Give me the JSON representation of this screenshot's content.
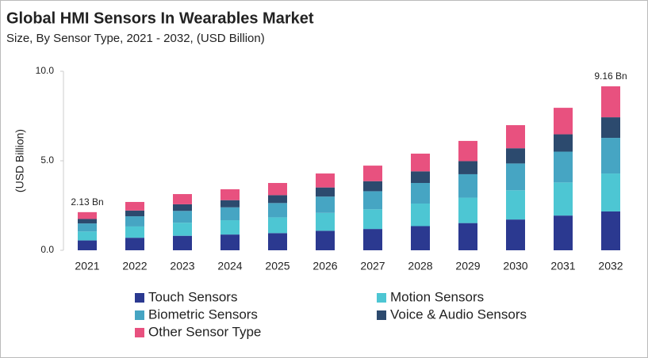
{
  "chart_data": {
    "type": "stacked-bar",
    "title": "Global HMI Sensors In Wearables Market",
    "subtitle": "Size, By Sensor Type, 2021 - 2032, (USD Billion)",
    "y_label": "(USD Billion)",
    "categories": [
      "2021",
      "2022",
      "2023",
      "2024",
      "2025",
      "2026",
      "2027",
      "2028",
      "2029",
      "2030",
      "2031",
      "2032"
    ],
    "series": [
      {
        "name": "Touch Sensors",
        "color": "#2b3990",
        "values": [
          0.55,
          0.7,
          0.81,
          0.88,
          0.96,
          1.09,
          1.19,
          1.35,
          1.52,
          1.72,
          1.94,
          2.17
        ]
      },
      {
        "name": "Motion Sensors",
        "color": "#4dc6d3",
        "values": [
          0.5,
          0.63,
          0.73,
          0.8,
          0.88,
          1.0,
          1.1,
          1.26,
          1.42,
          1.63,
          1.85,
          2.12
        ]
      },
      {
        "name": "Biometric Sensors",
        "color": "#46a5c3",
        "values": [
          0.45,
          0.57,
          0.66,
          0.72,
          0.8,
          0.91,
          1.01,
          1.15,
          1.31,
          1.5,
          1.72,
          1.99
        ]
      },
      {
        "name": "Voice & Audio Sensors",
        "color": "#2c4a6e",
        "values": [
          0.25,
          0.32,
          0.37,
          0.4,
          0.44,
          0.51,
          0.56,
          0.65,
          0.73,
          0.85,
          0.97,
          1.15
        ]
      },
      {
        "name": "Other Sensor Type",
        "color": "#e8517f",
        "values": [
          0.38,
          0.48,
          0.57,
          0.61,
          0.68,
          0.78,
          0.87,
          0.99,
          1.13,
          1.29,
          1.48,
          1.73
        ]
      }
    ],
    "annotations": [
      {
        "index": 0,
        "value": 2.13,
        "label": "2.13 Bn"
      },
      {
        "index": 11,
        "value": 9.16,
        "label": "9.16 Bn"
      }
    ],
    "ylim": [
      0,
      10
    ],
    "yticks": [
      {
        "value": 0,
        "label": "0.0"
      },
      {
        "value": 5,
        "label": "5.0"
      },
      {
        "value": 10,
        "label": "10.0"
      }
    ],
    "grid": false
  }
}
